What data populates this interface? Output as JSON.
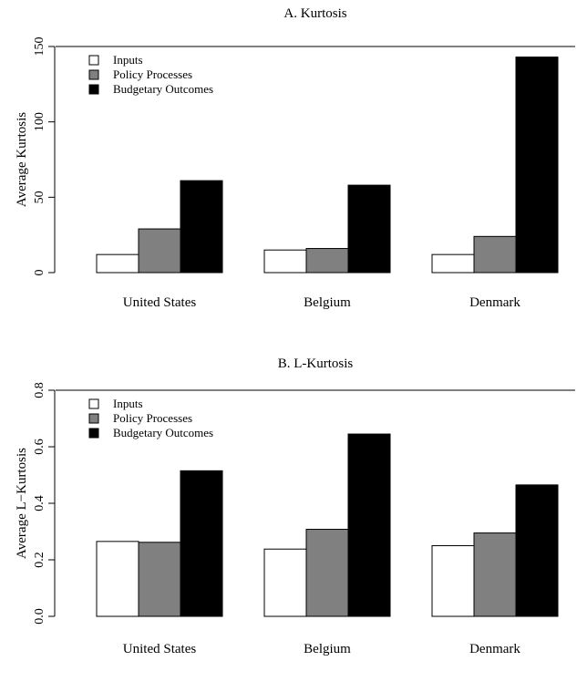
{
  "chart_data": [
    {
      "type": "bar",
      "title": "A. Kurtosis",
      "ylabel": "Average Kurtosis",
      "xlabel": "",
      "categories": [
        "United States",
        "Belgium",
        "Denmark"
      ],
      "series": [
        {
          "name": "Inputs",
          "color": "#ffffff",
          "values": [
            12,
            15,
            12
          ]
        },
        {
          "name": "Policy Processes",
          "color": "#808080",
          "values": [
            29,
            16,
            24
          ]
        },
        {
          "name": "Budgetary Outcomes",
          "color": "#000000",
          "values": [
            61,
            58,
            143
          ]
        }
      ],
      "ylim": [
        0,
        150
      ],
      "yticks": [
        "0",
        "50",
        "100",
        "150"
      ],
      "legend": "top-left",
      "grid": false
    },
    {
      "type": "bar",
      "title": "B. L-Kurtosis",
      "ylabel": "Average L−Kurtosis",
      "xlabel": "",
      "categories": [
        "United States",
        "Belgium",
        "Denmark"
      ],
      "series": [
        {
          "name": "Inputs",
          "color": "#ffffff",
          "values": [
            0.265,
            0.238,
            0.25
          ]
        },
        {
          "name": "Policy Processes",
          "color": "#808080",
          "values": [
            0.262,
            0.308,
            0.295
          ]
        },
        {
          "name": "Budgetary Outcomes",
          "color": "#000000",
          "values": [
            0.515,
            0.645,
            0.465
          ]
        }
      ],
      "ylim": [
        0,
        0.8
      ],
      "yticks": [
        "0.0",
        "0.2",
        "0.4",
        "0.6",
        "0.8"
      ],
      "legend": "top-left",
      "grid": false
    }
  ]
}
